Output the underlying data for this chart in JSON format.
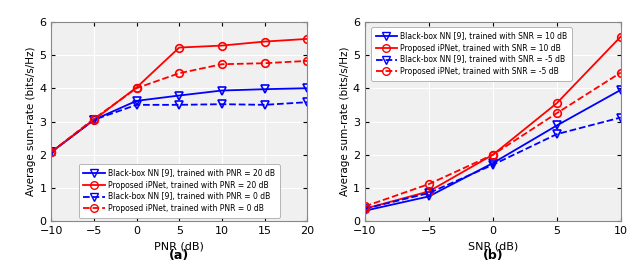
{
  "subplot_a": {
    "xlabel": "PNR (dB)",
    "ylabel": "Average sum-rate (bits/s/Hz)",
    "title": "(a)",
    "xlim": [
      -10,
      20
    ],
    "ylim": [
      0,
      6
    ],
    "xticks": [
      -10,
      -5,
      0,
      5,
      10,
      15,
      20
    ],
    "yticks": [
      0,
      1,
      2,
      3,
      4,
      5,
      6
    ],
    "x": [
      -10,
      -5,
      0,
      5,
      10,
      15,
      20
    ],
    "bb_pnr20": [
      2.08,
      3.05,
      3.62,
      3.78,
      3.93,
      3.97,
      4.0
    ],
    "ip_pnr20": [
      2.08,
      3.05,
      4.02,
      5.22,
      5.28,
      5.4,
      5.48
    ],
    "bb_pnr0": [
      2.08,
      3.05,
      3.5,
      3.5,
      3.52,
      3.5,
      3.58
    ],
    "ip_pnr0": [
      2.08,
      3.08,
      4.0,
      4.45,
      4.72,
      4.75,
      4.82
    ],
    "legend": [
      "Black-box NN [9], trained with PNR = 20 dB",
      "Proposed iPNet, trained with PNR = 20 dB",
      "Black-box NN [9], trained with PNR = 0 dB",
      "Proposed iPNet, trained with PNR = 0 dB"
    ]
  },
  "subplot_b": {
    "xlabel": "SNR (dB)",
    "ylabel": "Average sum-rate (bits/s/Hz)",
    "title": "(b)",
    "xlim": [
      -10,
      10
    ],
    "ylim": [
      0,
      6
    ],
    "xticks": [
      -10,
      -5,
      0,
      5,
      10
    ],
    "yticks": [
      0,
      1,
      2,
      3,
      4,
      5,
      6
    ],
    "x": [
      -10,
      -5,
      0,
      5,
      10
    ],
    "bb_snr10": [
      0.32,
      0.75,
      1.75,
      2.88,
      3.95
    ],
    "ip_snr10": [
      0.38,
      0.9,
      2.0,
      3.55,
      5.55
    ],
    "bb_snrm5": [
      0.38,
      0.85,
      1.7,
      2.62,
      3.12
    ],
    "ip_snrm5": [
      0.45,
      1.12,
      2.0,
      3.25,
      4.47
    ],
    "legend": [
      "Black-box NN [9], trained with SNR = 10 dB",
      "Proposed iPNet, trained with SNR = 10 dB",
      "Black-box NN [9], trained with SNR = -5 dB",
      "Proposed iPNet, trained with SNR = -5 dB"
    ]
  },
  "blue": "#0000FF",
  "red": "#FF0000",
  "linewidth": 1.3,
  "markersize": 5.5,
  "bg_color": "#f0f0f0",
  "grid_color": "#ffffff",
  "tick_fontsize": 8,
  "label_fontsize": 8,
  "legend_fontsize": 5.5
}
